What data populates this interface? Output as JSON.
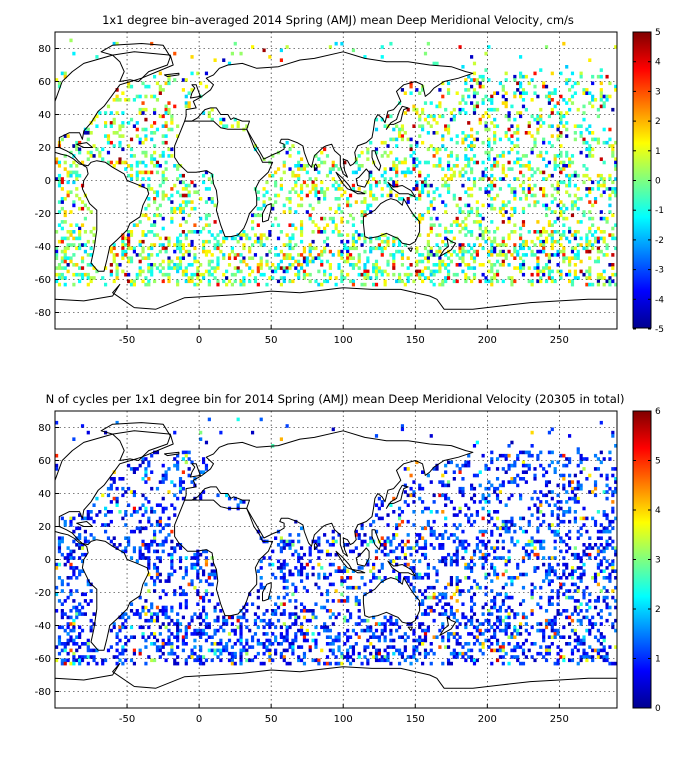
{
  "chart_data": [
    {
      "type": "heatmap",
      "title": "1x1 degree bin–averaged 2014 Spring (AMJ) mean Deep Meridional Velocity, cm/s",
      "xlabel": "",
      "ylabel": "",
      "xlim": [
        -100,
        290
      ],
      "ylim": [
        -90,
        90
      ],
      "x_ticks": [
        -50,
        0,
        50,
        100,
        150,
        200,
        250
      ],
      "y_ticks": [
        80,
        60,
        40,
        20,
        0,
        -20,
        -40,
        -60,
        -80
      ],
      "grid": true,
      "colormap": "jet",
      "colorbar": {
        "min": -5,
        "max": 5,
        "ticks": [
          5,
          4,
          3,
          2,
          1,
          0,
          -1,
          -2,
          -3,
          -4,
          -5
        ]
      }
    },
    {
      "type": "heatmap",
      "title": "N of cycles per 1x1 degree bin for 2014 Spring (AMJ) mean Deep Meridional Velocity (20305 in total)",
      "xlabel": "",
      "ylabel": "",
      "xlim": [
        -100,
        290
      ],
      "ylim": [
        -90,
        90
      ],
      "x_ticks": [
        -50,
        0,
        50,
        100,
        150,
        200,
        250
      ],
      "y_ticks": [
        80,
        60,
        40,
        20,
        0,
        -20,
        -40,
        -60,
        -80
      ],
      "grid": true,
      "colormap": "jet",
      "colorbar": {
        "min": 0,
        "max": 6,
        "ticks": [
          6,
          5,
          4,
          3,
          2,
          1,
          0
        ]
      }
    }
  ]
}
